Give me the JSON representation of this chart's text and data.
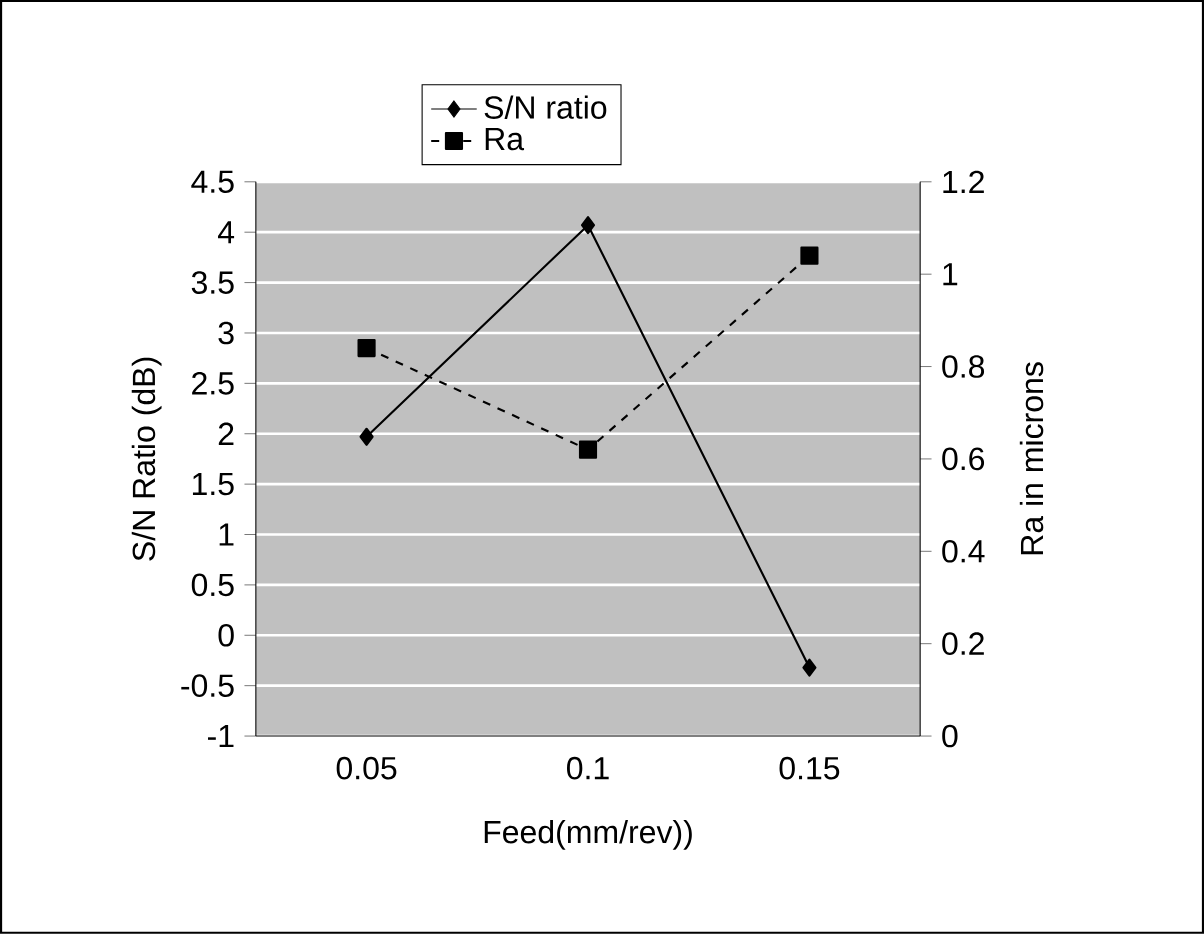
{
  "chart_data": {
    "type": "line",
    "xlabel": "Feed(mm/rev))",
    "ylabel": "S/N Ratio (dB)",
    "y2label": "Ra in microns",
    "categories": [
      "0.05",
      "0.1",
      "0.15"
    ],
    "series": [
      {
        "name": "S/N ratio",
        "color": "#000000",
        "values": [
          1.97,
          4.07,
          -0.32
        ],
        "marker": "diamond",
        "line_style": "solid"
      },
      {
        "name": "Ra",
        "color": "#000000",
        "values": [
          0.84,
          0.62,
          1.04
        ],
        "marker": "square",
        "line_style": "dashed",
        "axis": "y2"
      }
    ],
    "ylim": [
      -1,
      4.5
    ],
    "yticks": [
      -1,
      -0.5,
      0,
      0.5,
      1,
      1.5,
      2,
      2.5,
      3,
      3.5,
      4,
      4.5
    ],
    "y2lim": [
      0,
      1.2
    ],
    "y2ticks": [
      0,
      0.2,
      0.4,
      0.6,
      0.8,
      1,
      1.2
    ],
    "grid": "y",
    "legend": "top"
  }
}
